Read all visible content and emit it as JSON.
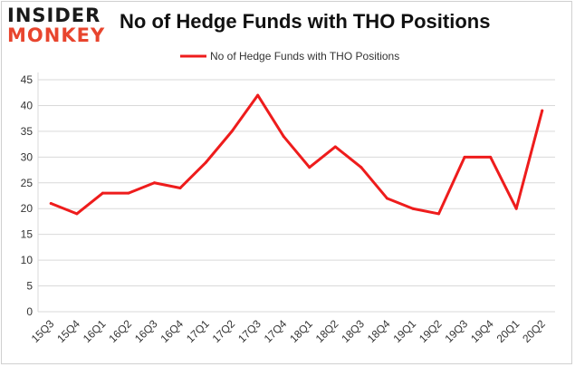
{
  "brand": {
    "logo_top": "INSIDER",
    "logo_bottom": "MONKEY",
    "colors": {
      "dark": "#1a1a1a",
      "accent": "#e8452e"
    }
  },
  "chart_data": {
    "type": "line",
    "title": "No of Hedge Funds with THO Positions",
    "categories": [
      "15Q3",
      "15Q4",
      "16Q1",
      "16Q2",
      "16Q3",
      "16Q4",
      "17Q1",
      "17Q2",
      "17Q3",
      "17Q4",
      "18Q1",
      "18Q2",
      "18Q3",
      "18Q4",
      "19Q1",
      "19Q2",
      "19Q3",
      "19Q4",
      "20Q1",
      "20Q2"
    ],
    "series": [
      {
        "name": "No of Hedge Funds with THO Positions",
        "color": "#ee1c1c",
        "values": [
          21,
          19,
          23,
          23,
          25,
          24,
          29,
          35,
          42,
          34,
          28,
          32,
          28,
          22,
          20,
          19,
          30,
          30,
          20,
          39
        ]
      }
    ],
    "yticks": [
      0,
      5,
      10,
      15,
      20,
      25,
      30,
      35,
      40,
      45
    ],
    "ylim": [
      0,
      45
    ],
    "xlabel": "",
    "ylabel": "",
    "legend": "top-center",
    "grid": true
  }
}
